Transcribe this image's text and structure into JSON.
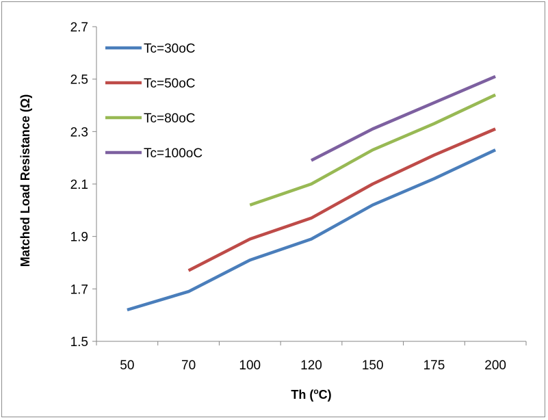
{
  "chart_data": {
    "type": "line",
    "title": "",
    "xlabel": "Th (",
    "xlabel_sup": "o",
    "xlabel_suffix": "C)",
    "ylabel": "Matched Load Resistance (Ω)",
    "categories": [
      "50",
      "70",
      "100",
      "120",
      "150",
      "175",
      "200"
    ],
    "ylim": [
      1.5,
      2.7
    ],
    "yticks": [
      "1.5",
      "1.7",
      "1.9",
      "2.1",
      "2.3",
      "2.5",
      "2.7"
    ],
    "grid": false,
    "legend_position": "top-left",
    "series": [
      {
        "name": "Tc=30oC",
        "color": "#4a7ebb",
        "values": [
          1.62,
          1.69,
          1.81,
          1.89,
          2.02,
          2.12,
          2.23
        ]
      },
      {
        "name": "Tc=50oC",
        "color": "#be4b48",
        "values": [
          null,
          1.77,
          1.89,
          1.97,
          2.1,
          2.21,
          2.31
        ]
      },
      {
        "name": "Tc=80oC",
        "color": "#98b954",
        "values": [
          null,
          null,
          2.02,
          2.1,
          2.23,
          2.33,
          2.44
        ]
      },
      {
        "name": "Tc=100oC",
        "color": "#7d60a0",
        "values": [
          null,
          null,
          null,
          2.19,
          2.31,
          2.41,
          2.51
        ]
      }
    ]
  }
}
